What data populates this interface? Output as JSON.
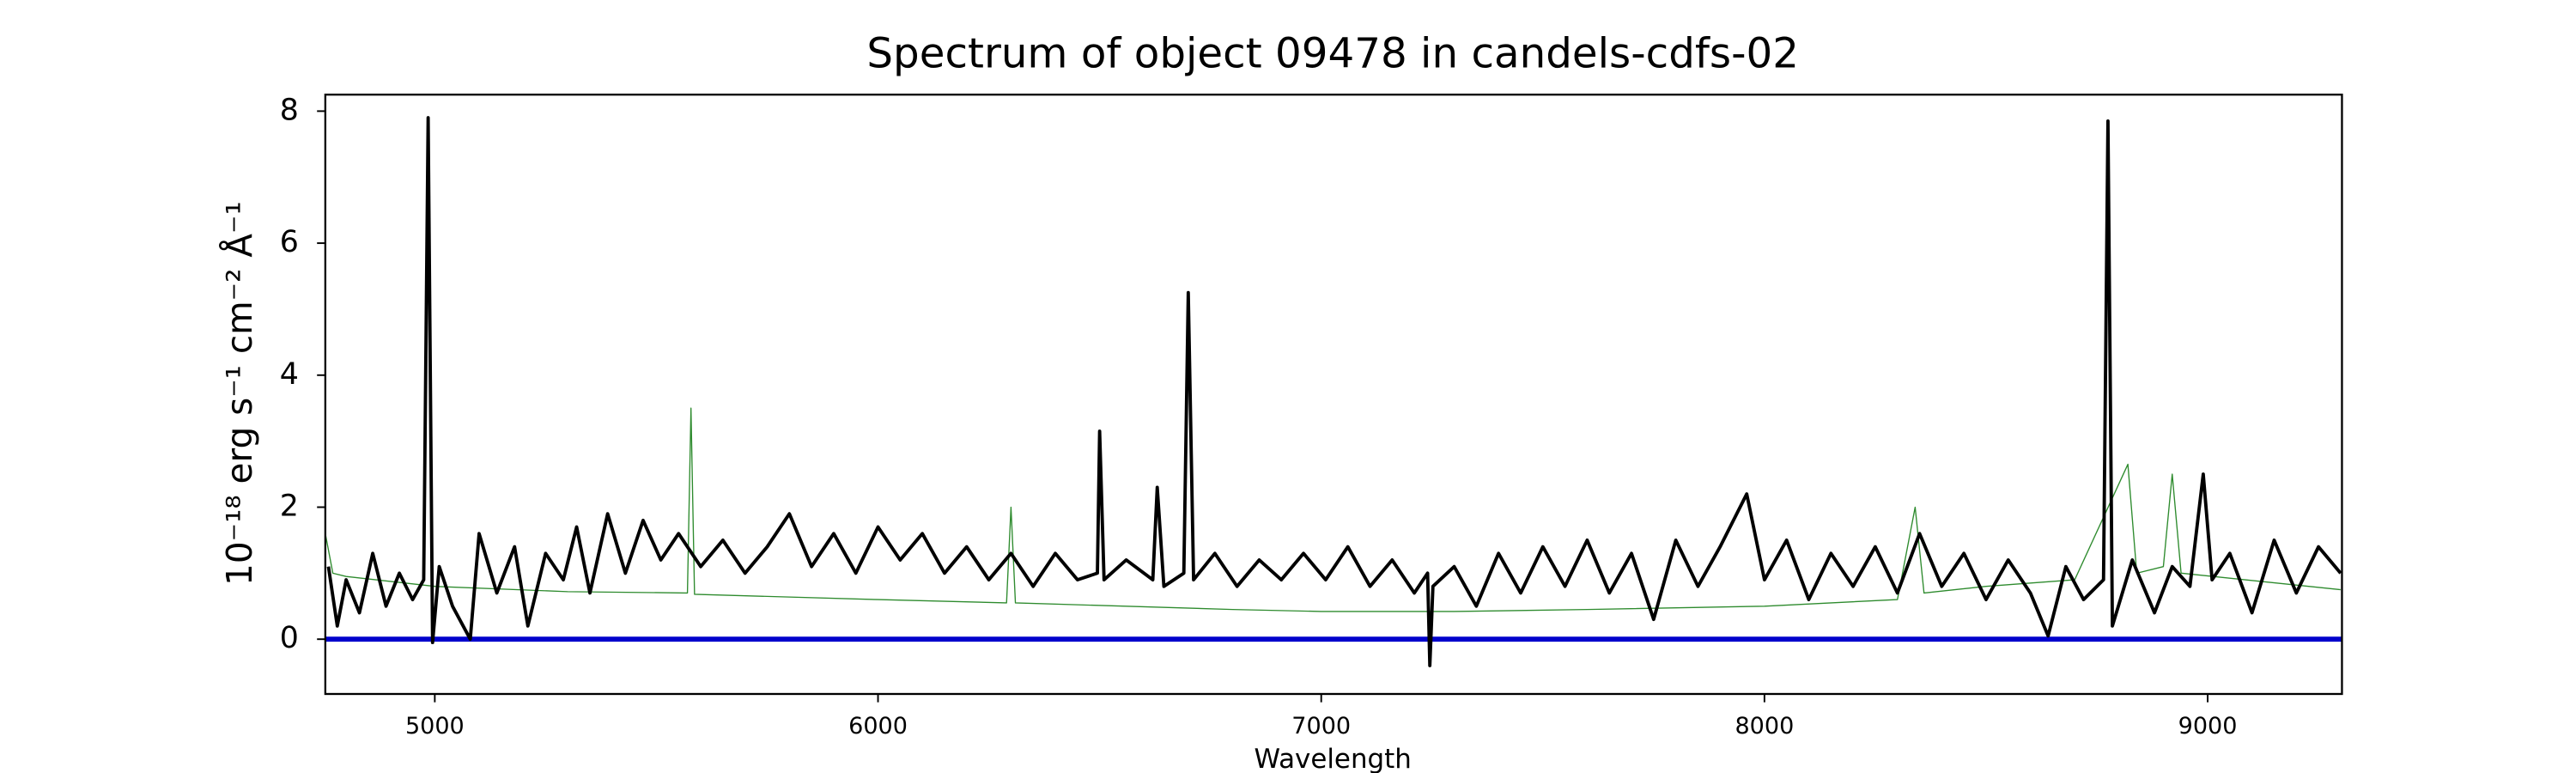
{
  "chart_data": {
    "type": "line",
    "title": "Spectrum of object 09478 in candels-cdfs-02",
    "x_label": "Wavelength",
    "y_label": "10⁻¹⁸ erg s⁻¹ cm⁻² Å⁻¹",
    "xlim": [
      4753,
      9303
    ],
    "ylim": [
      -0.83,
      8.25
    ],
    "xticks": [
      5000,
      6000,
      7000,
      8000,
      9000
    ],
    "yticks": [
      0,
      2,
      4,
      6,
      8
    ],
    "grid": false,
    "series": [
      {
        "color": "#2e8b2e",
        "x": [
          4753,
          4770,
          4800,
          5000,
          5300,
          5570,
          5578,
          5586,
          6000,
          6290,
          6300,
          6310,
          6800,
          7000,
          7300,
          7600,
          8000,
          8300,
          8340,
          8360,
          8500,
          8700,
          8820,
          8840,
          8900,
          8920,
          8940,
          9300
        ],
        "values": [
          1.6,
          1.0,
          0.95,
          0.8,
          0.72,
          0.7,
          3.5,
          0.68,
          0.6,
          0.55,
          2.0,
          0.55,
          0.45,
          0.42,
          0.42,
          0.45,
          0.5,
          0.6,
          2.0,
          0.7,
          0.8,
          0.9,
          2.65,
          1.0,
          1.1,
          2.5,
          1.0,
          0.75
        ]
      },
      {
        "color": "#0000cc",
        "x": [
          4753,
          9303
        ],
        "values": [
          0,
          0
        ]
      },
      {
        "color": "#000000",
        "x": [
          4760,
          4780,
          4800,
          4830,
          4860,
          4890,
          4920,
          4950,
          4975,
          4985,
          4995,
          5010,
          5040,
          5080,
          5100,
          5140,
          5180,
          5210,
          5250,
          5290,
          5320,
          5350,
          5390,
          5430,
          5470,
          5510,
          5550,
          5600,
          5650,
          5700,
          5750,
          5800,
          5850,
          5900,
          5950,
          6000,
          6050,
          6100,
          6150,
          6200,
          6250,
          6300,
          6350,
          6400,
          6450,
          6495,
          6500,
          6510,
          6560,
          6620,
          6630,
          6645,
          6690,
          6700,
          6712,
          6760,
          6810,
          6860,
          6910,
          6960,
          7010,
          7060,
          7110,
          7160,
          7210,
          7240,
          7245,
          7252,
          7300,
          7350,
          7400,
          7450,
          7500,
          7550,
          7600,
          7650,
          7700,
          7750,
          7800,
          7850,
          7900,
          7960,
          8000,
          8050,
          8100,
          8150,
          8200,
          8250,
          8300,
          8350,
          8400,
          8450,
          8500,
          8550,
          8600,
          8640,
          8680,
          8720,
          8765,
          8775,
          8785,
          8830,
          8880,
          8920,
          8960,
          8990,
          9010,
          9050,
          9100,
          9150,
          9200,
          9250,
          9300
        ],
        "values": [
          1.1,
          0.2,
          0.9,
          0.4,
          1.3,
          0.5,
          1.0,
          0.6,
          0.9,
          7.9,
          -0.05,
          1.1,
          0.5,
          0.0,
          1.6,
          0.7,
          1.4,
          0.2,
          1.3,
          0.9,
          1.7,
          0.7,
          1.9,
          1.0,
          1.8,
          1.2,
          1.6,
          1.1,
          1.5,
          1.0,
          1.4,
          1.9,
          1.1,
          1.6,
          1.0,
          1.7,
          1.2,
          1.6,
          1.0,
          1.4,
          0.9,
          1.3,
          0.8,
          1.3,
          0.9,
          1.0,
          3.15,
          0.9,
          1.2,
          0.9,
          2.3,
          0.8,
          1.0,
          5.25,
          0.9,
          1.3,
          0.8,
          1.2,
          0.9,
          1.3,
          0.9,
          1.4,
          0.8,
          1.2,
          0.7,
          1.0,
          -0.4,
          0.8,
          1.1,
          0.5,
          1.3,
          0.7,
          1.4,
          0.8,
          1.5,
          0.7,
          1.3,
          0.3,
          1.5,
          0.8,
          1.4,
          2.2,
          0.9,
          1.5,
          0.6,
          1.3,
          0.8,
          1.4,
          0.7,
          1.6,
          0.8,
          1.3,
          0.6,
          1.2,
          0.7,
          0.05,
          1.1,
          0.6,
          0.9,
          7.85,
          0.2,
          1.2,
          0.4,
          1.1,
          0.8,
          2.5,
          0.9,
          1.3,
          0.4,
          1.5,
          0.7,
          1.4,
          1.0
        ]
      }
    ]
  }
}
